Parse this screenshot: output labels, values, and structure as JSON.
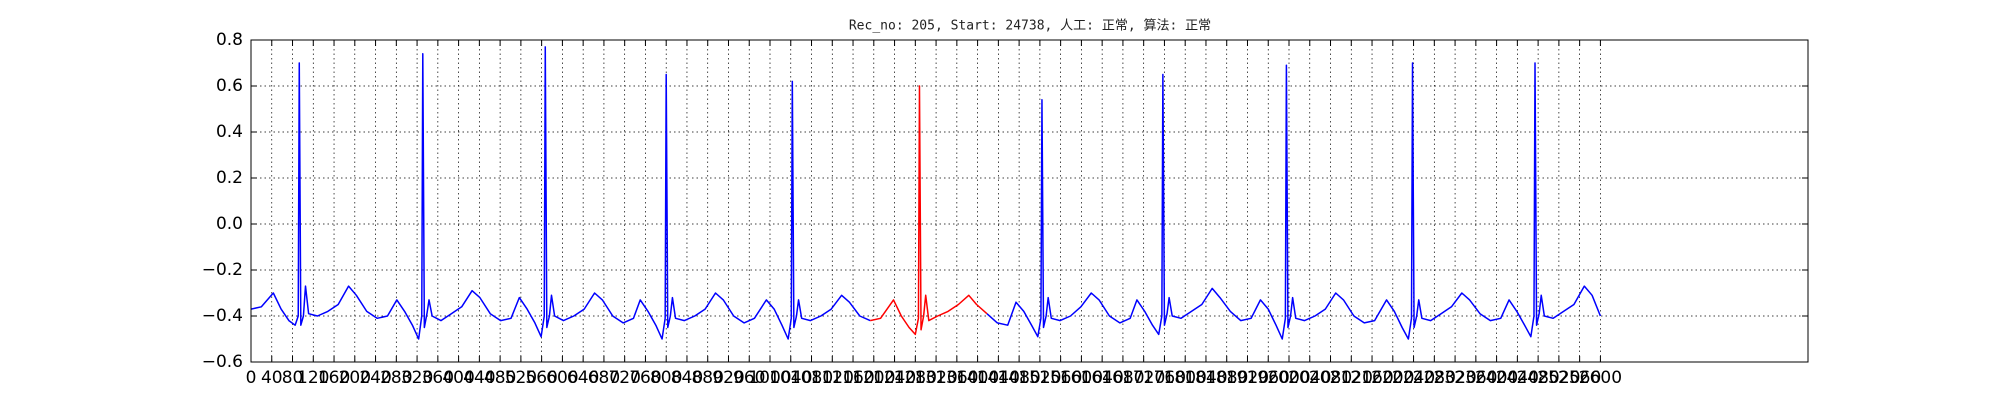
{
  "chart_data": {
    "type": "line",
    "title": "Rec_no: 205, Start: 24738, 人工: 正常, 算法: 正常",
    "x": [
      0,
      20,
      43,
      58,
      73,
      85,
      91,
      93,
      96,
      101,
      105,
      111,
      128,
      148,
      168,
      188,
      203,
      223,
      243,
      263,
      281,
      296,
      311,
      323,
      329,
      331,
      334,
      339,
      343,
      349,
      366,
      386,
      406,
      426,
      441,
      461,
      481,
      501,
      517,
      532,
      547,
      559,
      565,
      567,
      570,
      575,
      579,
      585,
      602,
      622,
      642,
      662,
      677,
      697,
      717,
      737,
      750,
      765,
      780,
      792,
      798,
      800,
      803,
      808,
      812,
      818,
      835,
      855,
      875,
      895,
      910,
      930,
      950,
      970,
      993,
      1008,
      1023,
      1035,
      1041,
      1043,
      1046,
      1051,
      1055,
      1061,
      1078,
      1098,
      1118,
      1138,
      1153,
      1173,
      1193,
      1213,
      1238,
      1253,
      1268,
      1280,
      1286,
      1288,
      1291,
      1296,
      1300,
      1306,
      1323,
      1343,
      1363,
      1383,
      1398,
      1418,
      1438,
      1458,
      1474,
      1489,
      1504,
      1516,
      1522,
      1524,
      1527,
      1532,
      1536,
      1542,
      1559,
      1579,
      1599,
      1619,
      1634,
      1654,
      1674,
      1694,
      1707,
      1722,
      1737,
      1749,
      1755,
      1757,
      1760,
      1765,
      1769,
      1775,
      1792,
      1812,
      1832,
      1852,
      1867,
      1887,
      1907,
      1927,
      1945,
      1960,
      1975,
      1987,
      1993,
      1995,
      1998,
      2003,
      2007,
      2013,
      2030,
      2050,
      2070,
      2090,
      2105,
      2125,
      2145,
      2165,
      2188,
      2203,
      2218,
      2230,
      2236,
      2238,
      2241,
      2246,
      2250,
      2256,
      2273,
      2293,
      2313,
      2333,
      2348,
      2368,
      2388,
      2408,
      2424,
      2439,
      2454,
      2466,
      2472,
      2474,
      2477,
      2482,
      2486,
      2492,
      2509,
      2529,
      2549,
      2569,
      2584,
      2600
    ],
    "series": [
      {
        "color": "#0000ff",
        "values": [
          -0.37,
          -0.36,
          -0.3,
          -0.37,
          -0.42,
          -0.44,
          -0.4,
          0.7,
          -0.44,
          -0.4,
          -0.27,
          -0.39,
          -0.4,
          -0.38,
          -0.35,
          -0.27,
          -0.31,
          -0.38,
          -0.41,
          -0.4,
          -0.33,
          -0.38,
          -0.44,
          -0.5,
          -0.4,
          0.74,
          -0.45,
          -0.39,
          -0.33,
          -0.4,
          -0.42,
          -0.39,
          -0.36,
          -0.29,
          -0.32,
          -0.39,
          -0.42,
          -0.41,
          -0.32,
          -0.37,
          -0.43,
          -0.49,
          -0.4,
          0.77,
          -0.45,
          -0.4,
          -0.31,
          -0.4,
          -0.42,
          -0.4,
          -0.37,
          -0.3,
          -0.33,
          -0.4,
          -0.43,
          -0.41,
          -0.33,
          -0.38,
          -0.44,
          -0.5,
          -0.41,
          0.65,
          -0.45,
          -0.4,
          -0.32,
          -0.41,
          -0.42,
          -0.4,
          -0.37,
          -0.3,
          -0.33,
          -0.4,
          -0.43,
          -0.41,
          -0.33,
          -0.37,
          -0.44,
          -0.5,
          -0.41,
          0.62,
          -0.45,
          -0.4,
          -0.33,
          -0.41,
          -0.42,
          -0.4,
          -0.37,
          -0.31,
          -0.34,
          -0.4,
          -0.42,
          null,
          null,
          null,
          null,
          null,
          null,
          null,
          null,
          null,
          null,
          null,
          null,
          null,
          null,
          null,
          null,
          -0.39,
          -0.43,
          -0.44,
          -0.34,
          -0.38,
          -0.44,
          -0.49,
          -0.41,
          0.54,
          -0.45,
          -0.4,
          -0.32,
          -0.41,
          -0.42,
          -0.4,
          -0.36,
          -0.3,
          -0.33,
          -0.4,
          -0.43,
          -0.41,
          -0.33,
          -0.38,
          -0.44,
          -0.48,
          -0.4,
          0.65,
          -0.44,
          -0.39,
          -0.32,
          -0.4,
          -0.41,
          -0.38,
          -0.35,
          -0.28,
          -0.32,
          -0.38,
          -0.42,
          -0.41,
          -0.33,
          -0.37,
          -0.44,
          -0.5,
          -0.41,
          0.69,
          -0.45,
          -0.4,
          -0.32,
          -0.41,
          -0.42,
          -0.4,
          -0.37,
          -0.3,
          -0.33,
          -0.4,
          -0.43,
          -0.42,
          -0.33,
          -0.38,
          -0.45,
          -0.5,
          -0.41,
          0.7,
          -0.45,
          -0.4,
          -0.33,
          -0.41,
          -0.42,
          -0.39,
          -0.36,
          -0.3,
          -0.33,
          -0.39,
          -0.42,
          -0.41,
          -0.33,
          -0.38,
          -0.44,
          -0.49,
          -0.4,
          0.7,
          -0.44,
          -0.39,
          -0.31,
          -0.4,
          -0.41,
          -0.38,
          -0.35,
          -0.27,
          -0.31,
          -0.4
        ]
      },
      {
        "color": "#ff0000",
        "values": [
          null,
          null,
          null,
          null,
          null,
          null,
          null,
          null,
          null,
          null,
          null,
          null,
          null,
          null,
          null,
          null,
          null,
          null,
          null,
          null,
          null,
          null,
          null,
          null,
          null,
          null,
          null,
          null,
          null,
          null,
          null,
          null,
          null,
          null,
          null,
          null,
          null,
          null,
          null,
          null,
          null,
          null,
          null,
          null,
          null,
          null,
          null,
          null,
          null,
          null,
          null,
          null,
          null,
          null,
          null,
          null,
          null,
          null,
          null,
          null,
          null,
          null,
          null,
          null,
          null,
          null,
          null,
          null,
          null,
          null,
          null,
          null,
          null,
          null,
          null,
          null,
          null,
          null,
          null,
          null,
          null,
          null,
          null,
          null,
          null,
          null,
          null,
          null,
          null,
          null,
          -0.42,
          -0.41,
          -0.33,
          -0.4,
          -0.45,
          -0.48,
          -0.41,
          0.6,
          -0.46,
          -0.4,
          -0.31,
          -0.42,
          -0.4,
          -0.38,
          -0.35,
          -0.31,
          -0.35,
          -0.39,
          null,
          null,
          null,
          null,
          null,
          null,
          null,
          null,
          null,
          null,
          null,
          null,
          null,
          null,
          null,
          null,
          null,
          null,
          null,
          null,
          null,
          null,
          null,
          null,
          null,
          null,
          null,
          null,
          null,
          null,
          null,
          null,
          null,
          null,
          null,
          null,
          null,
          null,
          null,
          null,
          null,
          null,
          null,
          null,
          null,
          null,
          null,
          null,
          null,
          null,
          null,
          null,
          null,
          null,
          null,
          null,
          null,
          null,
          null,
          null,
          null,
          null,
          null,
          null,
          null,
          null,
          null,
          null,
          null,
          null,
          null,
          null,
          null,
          null,
          null,
          null,
          null,
          null,
          null,
          null,
          null,
          null,
          null,
          null,
          null,
          null,
          null,
          null,
          null,
          null
        ]
      }
    ],
    "xlim": [
      0,
      3000
    ],
    "xticks": [
      0,
      40,
      80,
      120,
      160,
      200,
      240,
      280,
      320,
      360,
      400,
      440,
      480,
      520,
      560,
      600,
      640,
      680,
      720,
      760,
      800,
      840,
      880,
      920,
      960,
      1000,
      1040,
      1080,
      1120,
      1160,
      1200,
      1240,
      1280,
      1320,
      1360,
      1400,
      1440,
      1480,
      1520,
      1560,
      1600,
      1640,
      1680,
      1720,
      1760,
      1800,
      1840,
      1880,
      1920,
      1960,
      2000,
      2040,
      2080,
      2120,
      2160,
      2200,
      2240,
      2280,
      2320,
      2360,
      2400,
      2440,
      2480,
      2520,
      2560,
      2600
    ],
    "ylim": [
      -0.6,
      0.8
    ],
    "yticks": [
      {
        "value": -0.6,
        "label": "−0.6"
      },
      {
        "value": -0.4,
        "label": "−0.4"
      },
      {
        "value": -0.2,
        "label": "−0.2"
      },
      {
        "value": 0,
        "label": "0.0"
      },
      0.2,
      0.4,
      0.6,
      0.8
    ],
    "grid": true
  }
}
